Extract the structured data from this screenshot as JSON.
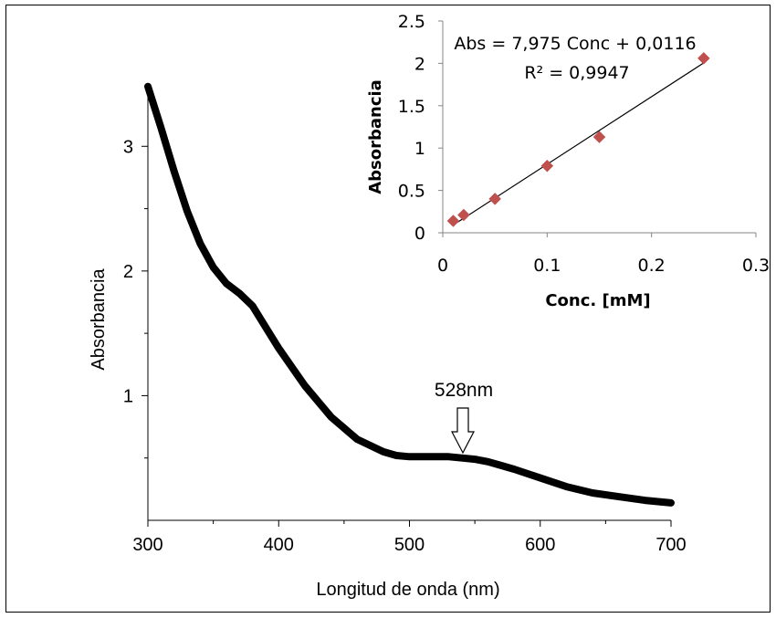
{
  "chart_data": [
    {
      "type": "line",
      "xlabel": "Longitud de onda (nm)",
      "ylabel": "Absorbancia",
      "xlim": [
        300,
        700
      ],
      "ylim": [
        0,
        3.5
      ],
      "x_ticks": [
        "300",
        "400",
        "500",
        "600",
        "700"
      ],
      "y_ticks": [
        "1",
        "2",
        "3"
      ],
      "grid": false,
      "color": "#000000",
      "series": [
        {
          "x": [
            300,
            310,
            320,
            330,
            340,
            350,
            360,
            370,
            380,
            390,
            400,
            420,
            440,
            460,
            480,
            490,
            500,
            510,
            520,
            530,
            540,
            550,
            560,
            570,
            580,
            600,
            620,
            640,
            660,
            680,
            700
          ],
          "values": [
            3.48,
            3.15,
            2.8,
            2.48,
            2.22,
            2.03,
            1.9,
            1.82,
            1.72,
            1.55,
            1.38,
            1.08,
            0.83,
            0.65,
            0.55,
            0.52,
            0.51,
            0.51,
            0.51,
            0.51,
            0.5,
            0.49,
            0.47,
            0.44,
            0.41,
            0.34,
            0.27,
            0.22,
            0.19,
            0.16,
            0.14
          ]
        }
      ],
      "annotations": [
        {
          "text": "528nm",
          "x": 541,
          "marker": "hollow-down-arrow"
        }
      ]
    },
    {
      "type": "scatter",
      "xlabel": "Conc. [mM]",
      "ylabel": "Absorbancia",
      "xlim": [
        0,
        0.3
      ],
      "ylim": [
        0,
        2.5
      ],
      "x_ticks": [
        "0",
        "0.1",
        "0.2",
        "0.3"
      ],
      "y_ticks": [
        "0",
        "0.5",
        "1",
        "1.5",
        "2",
        "2.5"
      ],
      "grid": false,
      "marker_color": "#c0504d",
      "x": [
        0.01,
        0.02,
        0.05,
        0.1,
        0.15,
        0.25
      ],
      "values": [
        0.14,
        0.21,
        0.4,
        0.79,
        1.13,
        2.06
      ],
      "trendline": {
        "slope": 7.975,
        "intercept": 0.0116,
        "x_range": [
          0.01,
          0.25
        ]
      },
      "annotations": [
        "Abs = 7,975 Conc + 0,0116",
        "R² = 0,9947"
      ]
    }
  ]
}
